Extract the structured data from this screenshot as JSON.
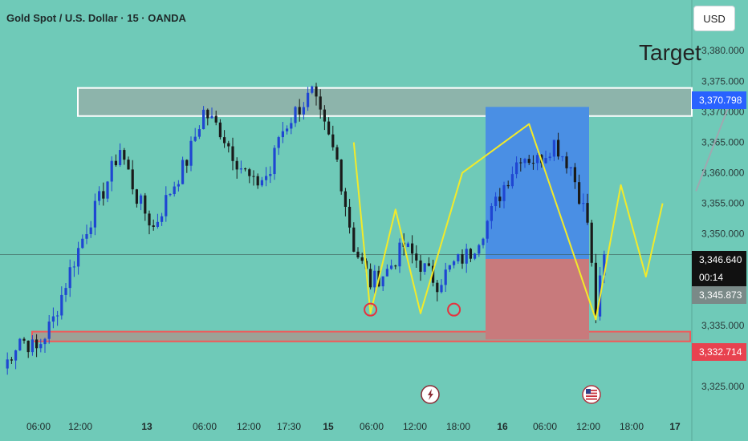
{
  "header": {
    "symbol_title": "Gold Spot / U.S. Dollar · 15 · OANDA",
    "currency_button": "USD"
  },
  "annotation": {
    "target_label": "Target"
  },
  "price_tags": {
    "target_price": "3,370.798",
    "current_price": "3,346.640",
    "countdown": "00:14",
    "secondary_price": "3,345.873",
    "stop_price": "3,332.714"
  },
  "colors": {
    "background": "#6fcab8",
    "up_candle": "#1f46d2",
    "down_candle": "#1a1a1a",
    "projection_line": "#f2ea2a",
    "target_zone": "#4a8fe4",
    "stop_zone": "#c87a7c",
    "resistance_box": "#93b0a8",
    "support_box": "#f05a5a",
    "target_tag": "#2962ff",
    "current_tag": "#111111",
    "secondary_tag": "#7a8a88",
    "stop_tag": "#e8424f"
  },
  "chart_data": {
    "type": "candlestick",
    "title": "Gold Spot / U.S. Dollar · 15 · OANDA",
    "y_axis": {
      "range": [
        3322,
        3382
      ],
      "ticks": [
        3325,
        3330,
        3335,
        3340,
        3345,
        3350,
        3355,
        3360,
        3365,
        3370,
        3375,
        3380
      ],
      "tick_labels": [
        "3,325.000",
        "3,330.000",
        "3,335.000",
        "3,340.000",
        "3,345.000",
        "3,350.000",
        "3,355.000",
        "3,360.000",
        "3,365.000",
        "3,370.000",
        "3,375.000",
        "3,380.000"
      ]
    },
    "x_axis": {
      "tick_labels": [
        "06:00",
        "12:00",
        "13",
        "06:00",
        "12:00",
        "17:30",
        "15",
        "06:00",
        "12:00",
        "18:00",
        "16",
        "06:00",
        "12:00",
        "18:00",
        "17"
      ],
      "bold_labels": [
        "13",
        "15",
        "16",
        "17"
      ]
    },
    "price_path": [
      [
        0,
        3328
      ],
      [
        4,
        3333
      ],
      [
        8,
        3331
      ],
      [
        12,
        3336
      ],
      [
        16,
        3344
      ],
      [
        20,
        3351
      ],
      [
        24,
        3357
      ],
      [
        28,
        3364
      ],
      [
        32,
        3356
      ],
      [
        36,
        3351
      ],
      [
        40,
        3357
      ],
      [
        44,
        3362
      ],
      [
        48,
        3370
      ],
      [
        52,
        3367
      ],
      [
        56,
        3362
      ],
      [
        60,
        3358
      ],
      [
        64,
        3360
      ],
      [
        66,
        3366
      ],
      [
        70,
        3370
      ],
      [
        74,
        3373
      ],
      [
        76,
        3369
      ],
      [
        80,
        3362
      ],
      [
        84,
        3348
      ],
      [
        88,
        3342
      ],
      [
        92,
        3344
      ],
      [
        96,
        3348
      ],
      [
        100,
        3345
      ],
      [
        104,
        3342
      ],
      [
        108,
        3345
      ],
      [
        112,
        3347
      ],
      [
        116,
        3352
      ],
      [
        120,
        3358
      ],
      [
        124,
        3363
      ],
      [
        128,
        3362
      ],
      [
        132,
        3365
      ],
      [
        136,
        3361
      ],
      [
        140,
        3352
      ],
      [
        142,
        3337
      ],
      [
        144,
        3346.64
      ]
    ],
    "projection_path": [
      [
        84,
        3365
      ],
      [
        88,
        3337
      ],
      [
        94,
        3354
      ],
      [
        100,
        3337
      ],
      [
        110,
        3360
      ],
      [
        126,
        3368
      ],
      [
        142,
        3336
      ],
      [
        148,
        3358
      ],
      [
        154,
        3343
      ],
      [
        158,
        3355
      ]
    ],
    "target_arrow": {
      "from": [
        166,
        3357
      ],
      "to": [
        175,
        3373
      ]
    },
    "zones": {
      "resistance": {
        "low": 3369.3,
        "high": 3373.9
      },
      "support": {
        "low": 3332.4,
        "high": 3334.0
      },
      "position_entry": 3345.9,
      "position_target": 3370.798,
      "position_stop": 3332.714
    },
    "marked_lows": [
      [
        88,
        3337.6
      ],
      [
        108,
        3337.6
      ]
    ],
    "current_price": 3346.64,
    "markers": [
      "lightning-icon",
      "us-flag-icon"
    ]
  }
}
